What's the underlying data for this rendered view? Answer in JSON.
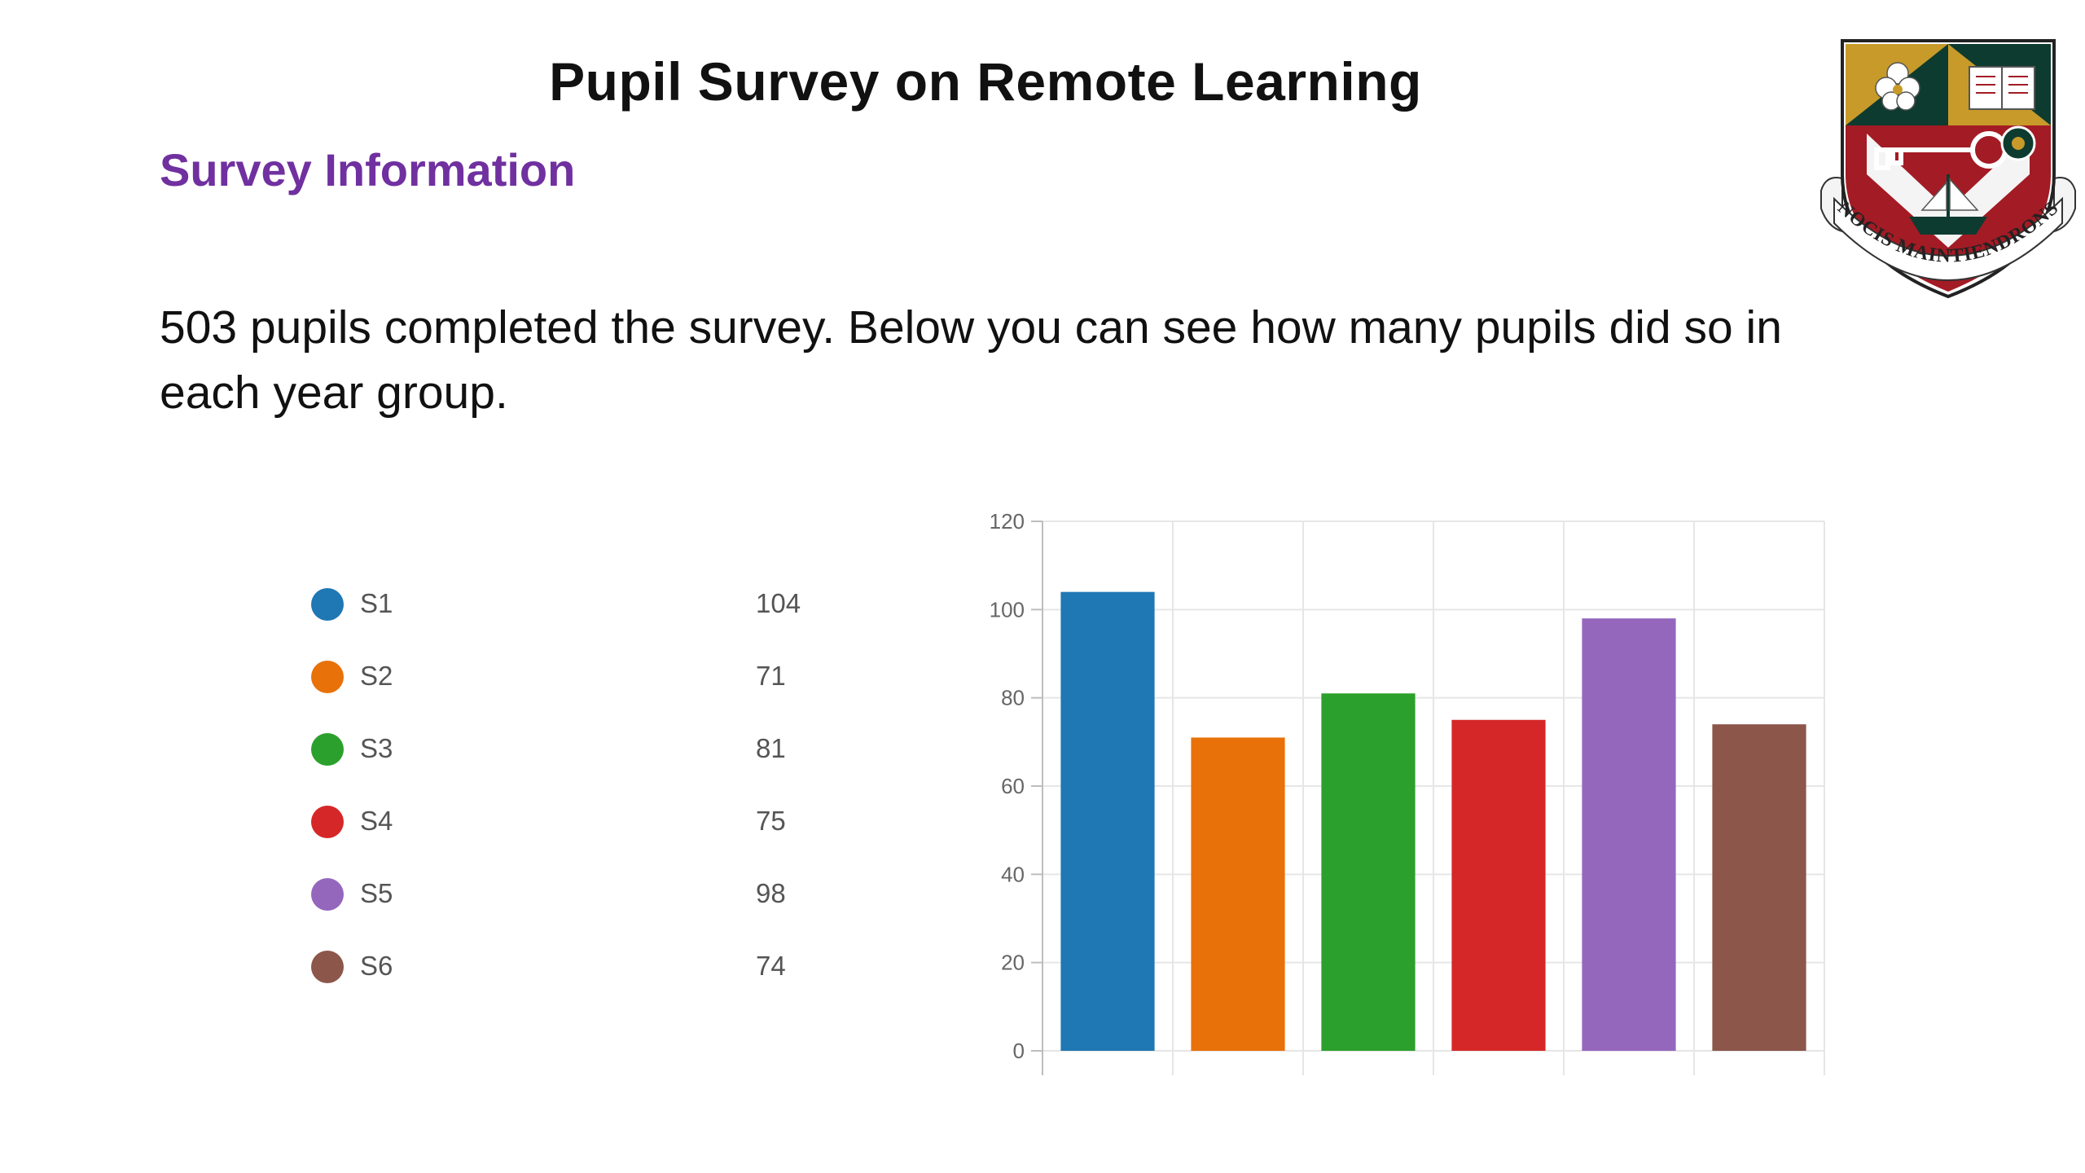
{
  "slide": {
    "title": "Pupil Survey on Remote Learning",
    "section_heading": "Survey Information",
    "intro": "503 pupils completed the survey. Below you can see how many pupils did so in each year group."
  },
  "crest": {
    "motto": "NOCIS MAINTIENDRONS"
  },
  "colors": {
    "heading": "#7030a0",
    "S1": "#1f77b4",
    "S2": "#e8710a",
    "S3": "#2ca02c",
    "S4": "#d62728",
    "S5": "#9467bd",
    "S6": "#8c564b"
  },
  "legend": {
    "items": [
      {
        "label": "S1",
        "value": "104",
        "color": "#1f77b4"
      },
      {
        "label": "S2",
        "value": "71",
        "color": "#e8710a"
      },
      {
        "label": "S3",
        "value": "81",
        "color": "#2ca02c"
      },
      {
        "label": "S4",
        "value": "75",
        "color": "#d62728"
      },
      {
        "label": "S5",
        "value": "98",
        "color": "#9467bd"
      },
      {
        "label": "S6",
        "value": "74",
        "color": "#8c564b"
      }
    ]
  },
  "chart_data": {
    "type": "bar",
    "categories": [
      "S1",
      "S2",
      "S3",
      "S4",
      "S5",
      "S6"
    ],
    "values": [
      104,
      71,
      81,
      75,
      98,
      74
    ],
    "colors": [
      "#1f77b4",
      "#e8710a",
      "#2ca02c",
      "#d62728",
      "#9467bd",
      "#8c564b"
    ],
    "ylim": [
      0,
      120
    ],
    "yticks": [
      0,
      20,
      40,
      60,
      80,
      100,
      120
    ],
    "grid": true,
    "xlabel": "",
    "ylabel": ""
  }
}
